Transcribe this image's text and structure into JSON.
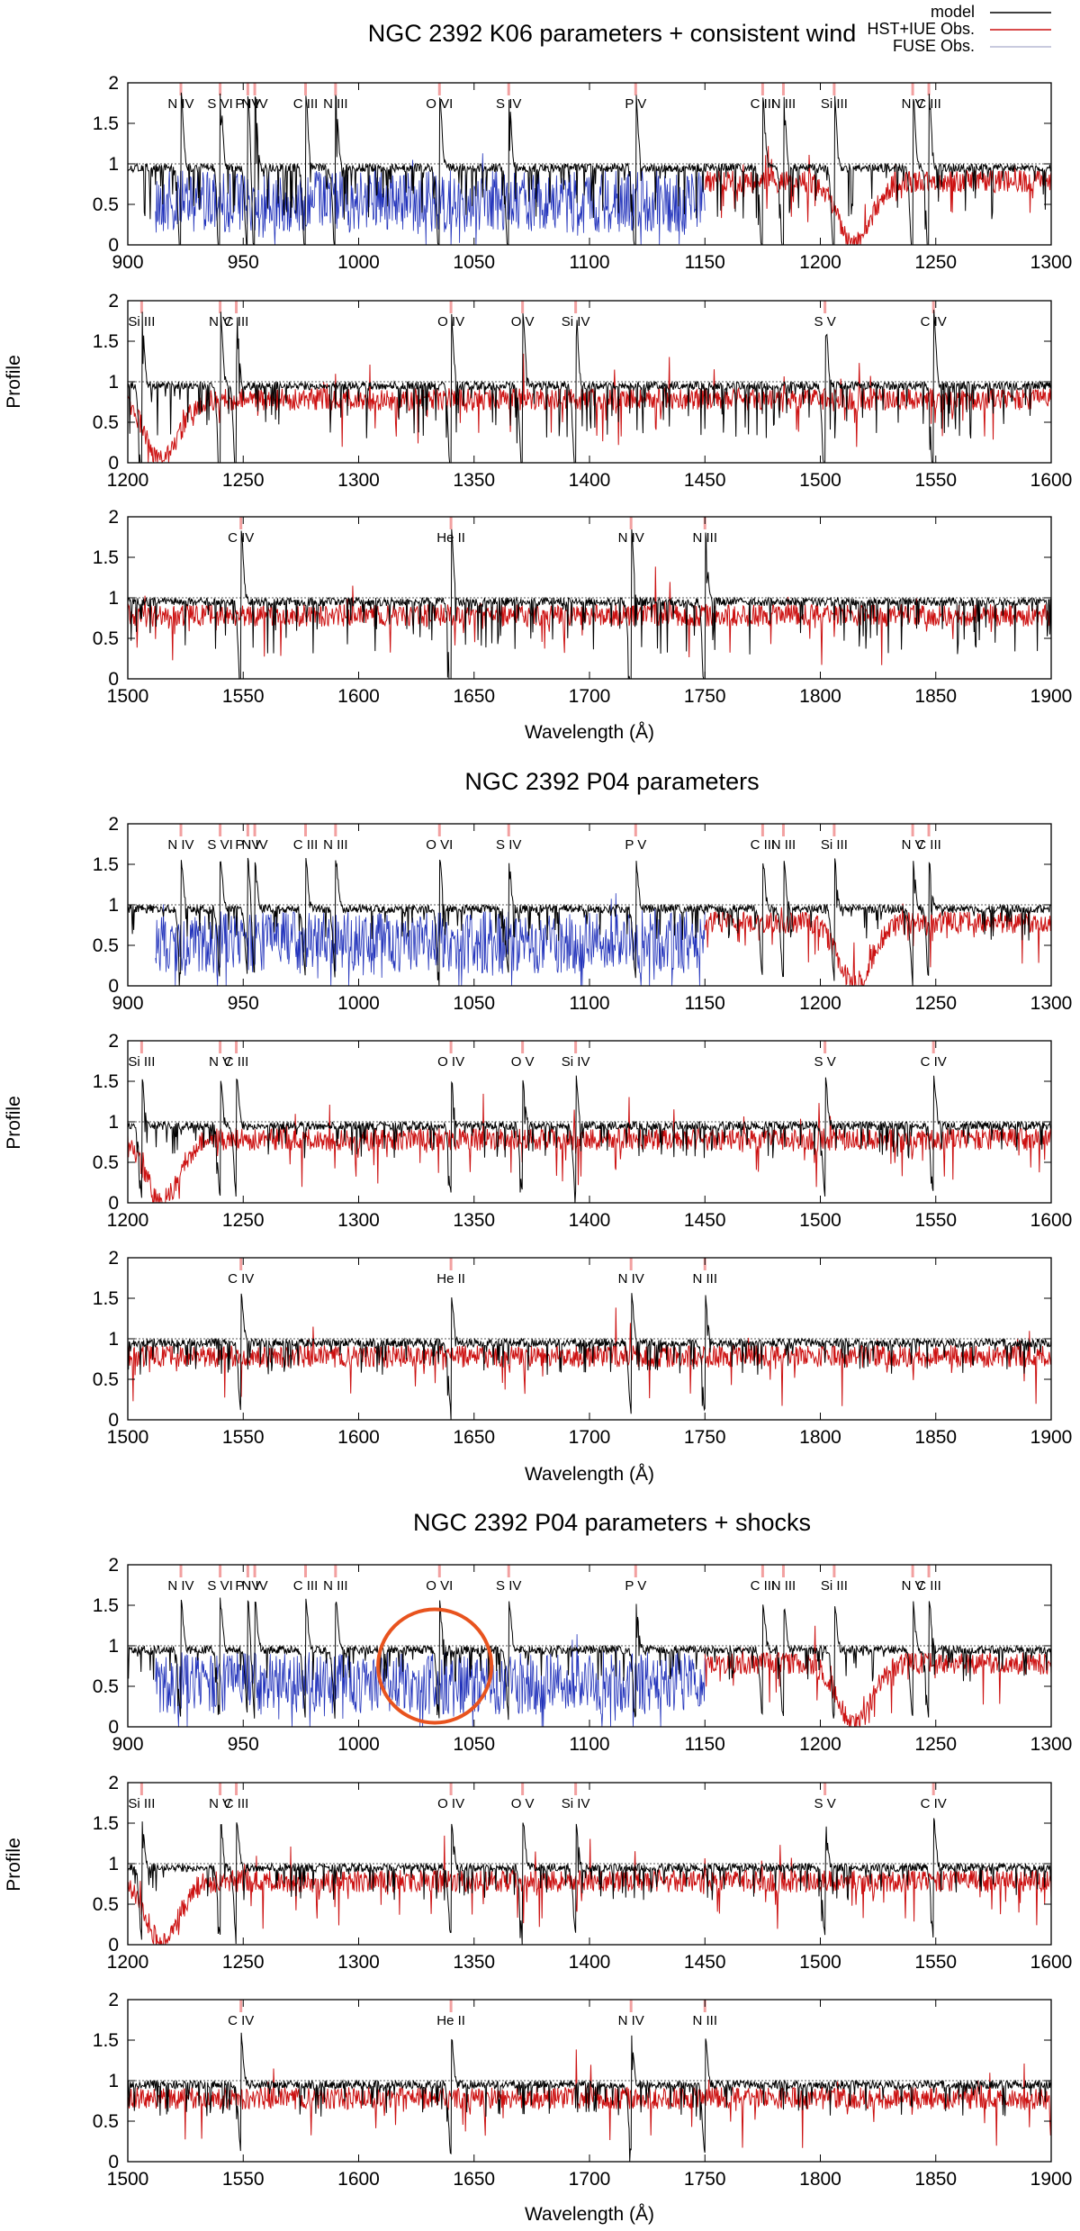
{
  "legend": {
    "placement": "top-right",
    "entries": [
      {
        "label": "model",
        "color": "#000000"
      },
      {
        "label": "HST+IUE Obs.",
        "color": "#cc1111"
      },
      {
        "label": "FUSE Obs.",
        "color": "#9aa0c8"
      }
    ]
  },
  "colors": {
    "model": "#000000",
    "hst": "#cc1111",
    "fuse": "#2233bb",
    "annotation": "#e8531e"
  },
  "chart_data": [
    {
      "type": "line",
      "title": "NGC 2392 K06 parameters + consistent wind",
      "ylabel": "Profile",
      "xlabel": "Wavelength (Å)",
      "annotation": null,
      "series": [
        {
          "name": "model",
          "description": "synthetic spectrum normalized to continuum 1"
        },
        {
          "name": "HST+IUE Obs.",
          "description": "observed UV spectrum"
        },
        {
          "name": "FUSE Obs.",
          "description": "observed far-UV spectrum 900–1150 Å"
        }
      ],
      "panels": [
        {
          "xlim": [
            900,
            1300
          ],
          "ylim": [
            0,
            2
          ],
          "xticks": [
            900,
            950,
            1000,
            1050,
            1100,
            1150,
            1200,
            1250,
            1300
          ],
          "yticks": [
            0,
            0.5,
            1,
            1.5,
            2
          ],
          "fuse_range": [
            912,
            1150
          ],
          "hst_range": [
            1150,
            1300
          ],
          "lines": [
            {
              "text": "N IV",
              "x": 923
            },
            {
              "text": "S VI",
              "x": 940
            },
            {
              "text": "P IV",
              "x": 952
            },
            {
              "text": "N IV",
              "x": 955
            },
            {
              "text": "C III",
              "x": 977
            },
            {
              "text": "N III",
              "x": 990
            },
            {
              "text": "O VI",
              "x": 1035
            },
            {
              "text": "S IV",
              "x": 1065
            },
            {
              "text": "P V",
              "x": 1120
            },
            {
              "text": "C III",
              "x": 1175
            },
            {
              "text": "N III",
              "x": 1184
            },
            {
              "text": "Si III",
              "x": 1206
            },
            {
              "text": "N V",
              "x": 1240
            },
            {
              "text": "C III",
              "x": 1247
            }
          ]
        },
        {
          "xlim": [
            1200,
            1600
          ],
          "ylim": [
            0,
            2
          ],
          "xticks": [
            1200,
            1250,
            1300,
            1350,
            1400,
            1450,
            1500,
            1550,
            1600
          ],
          "yticks": [
            0,
            0.5,
            1,
            1.5,
            2
          ],
          "fuse_range": null,
          "hst_range": [
            1200,
            1600
          ],
          "lines": [
            {
              "text": "Si III",
              "x": 1206
            },
            {
              "text": "N V",
              "x": 1240
            },
            {
              "text": "C III",
              "x": 1247
            },
            {
              "text": "O IV",
              "x": 1340
            },
            {
              "text": "O V",
              "x": 1371
            },
            {
              "text": "Si IV",
              "x": 1394
            },
            {
              "text": "S V",
              "x": 1502
            },
            {
              "text": "C IV",
              "x": 1549
            }
          ]
        },
        {
          "xlim": [
            1500,
            1900
          ],
          "ylim": [
            0,
            2
          ],
          "xticks": [
            1500,
            1550,
            1600,
            1650,
            1700,
            1750,
            1800,
            1850,
            1900
          ],
          "yticks": [
            0,
            0.5,
            1,
            1.5,
            2
          ],
          "fuse_range": null,
          "hst_range": [
            1500,
            1900
          ],
          "lines": [
            {
              "text": "C IV",
              "x": 1549
            },
            {
              "text": "He II",
              "x": 1640
            },
            {
              "text": "N IV",
              "x": 1718
            },
            {
              "text": "N III",
              "x": 1750
            }
          ]
        }
      ]
    },
    {
      "type": "line",
      "title": "NGC 2392 P04 parameters",
      "ylabel": "Profile",
      "xlabel": "Wavelength (Å)",
      "annotation": null,
      "series": [
        {
          "name": "model",
          "description": "synthetic spectrum normalized to continuum 1"
        },
        {
          "name": "HST+IUE Obs.",
          "description": "observed UV spectrum"
        },
        {
          "name": "FUSE Obs.",
          "description": "observed far-UV spectrum 900–1150 Å"
        }
      ],
      "panels": [
        {
          "xlim": [
            900,
            1300
          ],
          "ylim": [
            0,
            2
          ],
          "xticks": [
            900,
            950,
            1000,
            1050,
            1100,
            1150,
            1200,
            1250,
            1300
          ],
          "yticks": [
            0,
            0.5,
            1,
            1.5,
            2
          ],
          "fuse_range": [
            912,
            1150
          ],
          "hst_range": [
            1150,
            1300
          ],
          "lines": [
            {
              "text": "N IV",
              "x": 923
            },
            {
              "text": "S VI",
              "x": 940
            },
            {
              "text": "P IV",
              "x": 952
            },
            {
              "text": "N IV",
              "x": 955
            },
            {
              "text": "C III",
              "x": 977
            },
            {
              "text": "N III",
              "x": 990
            },
            {
              "text": "O VI",
              "x": 1035
            },
            {
              "text": "S IV",
              "x": 1065
            },
            {
              "text": "P V",
              "x": 1120
            },
            {
              "text": "C III",
              "x": 1175
            },
            {
              "text": "N III",
              "x": 1184
            },
            {
              "text": "Si III",
              "x": 1206
            },
            {
              "text": "N V",
              "x": 1240
            },
            {
              "text": "C III",
              "x": 1247
            }
          ]
        },
        {
          "xlim": [
            1200,
            1600
          ],
          "ylim": [
            0,
            2
          ],
          "xticks": [
            1200,
            1250,
            1300,
            1350,
            1400,
            1450,
            1500,
            1550,
            1600
          ],
          "yticks": [
            0,
            0.5,
            1,
            1.5,
            2
          ],
          "fuse_range": null,
          "hst_range": [
            1200,
            1600
          ],
          "lines": [
            {
              "text": "Si III",
              "x": 1206
            },
            {
              "text": "N V",
              "x": 1240
            },
            {
              "text": "C III",
              "x": 1247
            },
            {
              "text": "O IV",
              "x": 1340
            },
            {
              "text": "O V",
              "x": 1371
            },
            {
              "text": "Si IV",
              "x": 1394
            },
            {
              "text": "S V",
              "x": 1502
            },
            {
              "text": "C IV",
              "x": 1549
            }
          ]
        },
        {
          "xlim": [
            1500,
            1900
          ],
          "ylim": [
            0,
            2
          ],
          "xticks": [
            1500,
            1550,
            1600,
            1650,
            1700,
            1750,
            1800,
            1850,
            1900
          ],
          "yticks": [
            0,
            0.5,
            1,
            1.5,
            2
          ],
          "fuse_range": null,
          "hst_range": [
            1500,
            1900
          ],
          "lines": [
            {
              "text": "C IV",
              "x": 1549
            },
            {
              "text": "He II",
              "x": 1640
            },
            {
              "text": "N IV",
              "x": 1718
            },
            {
              "text": "N III",
              "x": 1750
            }
          ]
        }
      ]
    },
    {
      "type": "line",
      "title": "NGC 2392 P04 parameters + shocks",
      "ylabel": "Profile",
      "xlabel": "Wavelength (Å)",
      "annotation": {
        "shape": "circle",
        "center_wavelength": 1033,
        "center_profile": 0.75,
        "note": "highlights O VI doublet region"
      },
      "series": [
        {
          "name": "model",
          "description": "synthetic spectrum normalized to continuum 1"
        },
        {
          "name": "HST+IUE Obs.",
          "description": "observed UV spectrum"
        },
        {
          "name": "FUSE Obs.",
          "description": "observed far-UV spectrum 900–1150 Å"
        }
      ],
      "panels": [
        {
          "xlim": [
            900,
            1300
          ],
          "ylim": [
            0,
            2
          ],
          "xticks": [
            900,
            950,
            1000,
            1050,
            1100,
            1150,
            1200,
            1250,
            1300
          ],
          "yticks": [
            0,
            0.5,
            1,
            1.5,
            2
          ],
          "fuse_range": [
            912,
            1150
          ],
          "hst_range": [
            1150,
            1300
          ],
          "lines": [
            {
              "text": "N IV",
              "x": 923
            },
            {
              "text": "S VI",
              "x": 940
            },
            {
              "text": "P IV",
              "x": 952
            },
            {
              "text": "N IV",
              "x": 955
            },
            {
              "text": "C III",
              "x": 977
            },
            {
              "text": "N III",
              "x": 990
            },
            {
              "text": "O VI",
              "x": 1035
            },
            {
              "text": "S IV",
              "x": 1065
            },
            {
              "text": "P V",
              "x": 1120
            },
            {
              "text": "C III",
              "x": 1175
            },
            {
              "text": "N III",
              "x": 1184
            },
            {
              "text": "Si III",
              "x": 1206
            },
            {
              "text": "N V",
              "x": 1240
            },
            {
              "text": "C III",
              "x": 1247
            }
          ]
        },
        {
          "xlim": [
            1200,
            1600
          ],
          "ylim": [
            0,
            2
          ],
          "xticks": [
            1200,
            1250,
            1300,
            1350,
            1400,
            1450,
            1500,
            1550,
            1600
          ],
          "yticks": [
            0,
            0.5,
            1,
            1.5,
            2
          ],
          "fuse_range": null,
          "hst_range": [
            1200,
            1600
          ],
          "lines": [
            {
              "text": "Si III",
              "x": 1206
            },
            {
              "text": "N V",
              "x": 1240
            },
            {
              "text": "C III",
              "x": 1247
            },
            {
              "text": "O IV",
              "x": 1340
            },
            {
              "text": "O V",
              "x": 1371
            },
            {
              "text": "Si IV",
              "x": 1394
            },
            {
              "text": "S V",
              "x": 1502
            },
            {
              "text": "C IV",
              "x": 1549
            }
          ]
        },
        {
          "xlim": [
            1500,
            1900
          ],
          "ylim": [
            0,
            2
          ],
          "xticks": [
            1500,
            1550,
            1600,
            1650,
            1700,
            1750,
            1800,
            1850,
            1900
          ],
          "yticks": [
            0,
            0.5,
            1,
            1.5,
            2
          ],
          "fuse_range": null,
          "hst_range": [
            1500,
            1900
          ],
          "lines": [
            {
              "text": "C IV",
              "x": 1549
            },
            {
              "text": "He II",
              "x": 1640
            },
            {
              "text": "N IV",
              "x": 1718
            },
            {
              "text": "N III",
              "x": 1750
            }
          ]
        }
      ]
    }
  ]
}
